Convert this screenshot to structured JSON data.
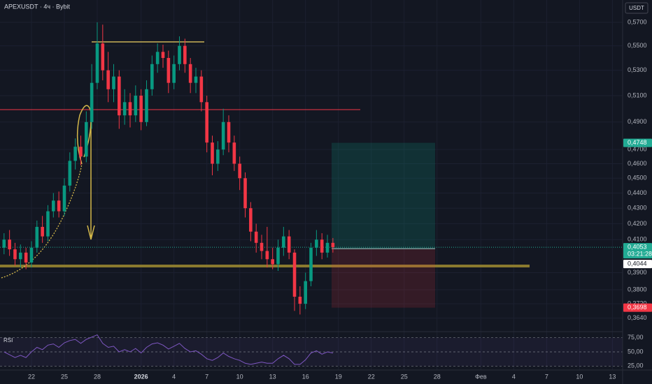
{
  "chart_data": {
    "type": "candlestick",
    "title": "APEXUSDT · 4ч · Bybit",
    "currency": "USDT",
    "log_scale": true,
    "grid": true,
    "up_color": "#089981",
    "down_color": "#f23645",
    "x": [
      19.5,
      20,
      20.5,
      21,
      21.5,
      22,
      22.5,
      23,
      23.5,
      24,
      24.5,
      25,
      25.5,
      26,
      26.5,
      27,
      27.5,
      28,
      28.5,
      29,
      29.5,
      30,
      30.5,
      31,
      31.5,
      32,
      32.5,
      33,
      33.5,
      34,
      34.5,
      35,
      35.5,
      36,
      36.5,
      37,
      37.5,
      38,
      38.5,
      39,
      39.5,
      40,
      40.5,
      41,
      41.5,
      42,
      42.5,
      43,
      43.5,
      44,
      44.5,
      45,
      45.5,
      46,
      46.5,
      47,
      47.5,
      48,
      48.5,
      49,
      49.5
    ],
    "open": [
      0.405,
      0.41,
      0.404,
      0.398,
      0.402,
      0.396,
      0.405,
      0.418,
      0.412,
      0.428,
      0.435,
      0.428,
      0.445,
      0.462,
      0.472,
      0.465,
      0.49,
      0.52,
      0.552,
      0.53,
      0.515,
      0.525,
      0.495,
      0.505,
      0.495,
      0.51,
      0.49,
      0.515,
      0.535,
      0.545,
      0.54,
      0.52,
      0.535,
      0.55,
      0.535,
      0.52,
      0.525,
      0.505,
      0.475,
      0.46,
      0.47,
      0.49,
      0.475,
      0.46,
      0.45,
      0.43,
      0.415,
      0.408,
      0.403,
      0.398,
      0.395,
      0.405,
      0.412,
      0.402,
      0.376,
      0.372,
      0.385,
      0.405,
      0.41,
      0.402,
      0.408
    ],
    "high": [
      0.414,
      0.416,
      0.408,
      0.407,
      0.405,
      0.409,
      0.422,
      0.425,
      0.432,
      0.44,
      0.441,
      0.45,
      0.468,
      0.478,
      0.48,
      0.498,
      0.535,
      0.57,
      0.568,
      0.545,
      0.535,
      0.53,
      0.515,
      0.512,
      0.518,
      0.515,
      0.522,
      0.542,
      0.552,
      0.551,
      0.546,
      0.542,
      0.558,
      0.556,
      0.54,
      0.532,
      0.53,
      0.51,
      0.48,
      0.476,
      0.5,
      0.495,
      0.48,
      0.465,
      0.454,
      0.434,
      0.42,
      0.413,
      0.418,
      0.405,
      0.41,
      0.418,
      0.416,
      0.404,
      0.382,
      0.39,
      0.408,
      0.416,
      0.414,
      0.413,
      0.411
    ],
    "low": [
      0.401,
      0.4,
      0.394,
      0.393,
      0.392,
      0.393,
      0.402,
      0.408,
      0.409,
      0.424,
      0.424,
      0.425,
      0.441,
      0.456,
      0.459,
      0.461,
      0.485,
      0.515,
      0.522,
      0.505,
      0.505,
      0.485,
      0.488,
      0.486,
      0.49,
      0.484,
      0.487,
      0.51,
      0.528,
      0.532,
      0.512,
      0.515,
      0.53,
      0.528,
      0.512,
      0.512,
      0.498,
      0.468,
      0.452,
      0.455,
      0.466,
      0.468,
      0.455,
      0.442,
      0.424,
      0.409,
      0.402,
      0.398,
      0.393,
      0.392,
      0.391,
      0.4,
      0.398,
      0.368,
      0.366,
      0.369,
      0.382,
      0.4,
      0.398,
      0.399,
      0.402
    ],
    "close": [
      0.41,
      0.404,
      0.398,
      0.402,
      0.396,
      0.405,
      0.418,
      0.412,
      0.428,
      0.435,
      0.428,
      0.445,
      0.462,
      0.472,
      0.465,
      0.49,
      0.52,
      0.552,
      0.53,
      0.515,
      0.525,
      0.495,
      0.505,
      0.495,
      0.51,
      0.49,
      0.515,
      0.535,
      0.545,
      0.54,
      0.52,
      0.535,
      0.55,
      0.535,
      0.52,
      0.525,
      0.505,
      0.475,
      0.46,
      0.47,
      0.49,
      0.475,
      0.46,
      0.45,
      0.43,
      0.415,
      0.408,
      0.403,
      0.398,
      0.395,
      0.405,
      0.412,
      0.402,
      0.376,
      0.372,
      0.385,
      0.405,
      0.41,
      0.402,
      0.408,
      0.4053
    ],
    "xlim": [
      19.13,
      75.93
    ],
    "xticks": [
      {
        "value": 22,
        "label": "22"
      },
      {
        "value": 25,
        "label": "25"
      },
      {
        "value": 28,
        "label": "28"
      },
      {
        "value": 32,
        "label": "2026"
      },
      {
        "value": 35,
        "label": "4"
      },
      {
        "value": 38,
        "label": "7"
      },
      {
        "value": 41,
        "label": "10"
      },
      {
        "value": 44,
        "label": "13"
      },
      {
        "value": 47,
        "label": "16"
      },
      {
        "value": 50,
        "label": "19"
      },
      {
        "value": 53,
        "label": "22"
      },
      {
        "value": 56,
        "label": "25"
      },
      {
        "value": 59,
        "label": "28"
      },
      {
        "value": 63,
        "label": "Фев"
      },
      {
        "value": 66,
        "label": "4"
      },
      {
        "value": 69,
        "label": "7"
      },
      {
        "value": 72,
        "label": "10"
      },
      {
        "value": 75,
        "label": "13"
      }
    ],
    "ylim": [
      0.3585,
      0.5896
    ],
    "yticks": [
      {
        "value": 0.57,
        "label": "0,5700"
      },
      {
        "value": 0.55,
        "label": "0,5500"
      },
      {
        "value": 0.53,
        "label": "0,5300"
      },
      {
        "value": 0.51,
        "label": "0,5100"
      },
      {
        "value": 0.49,
        "label": "0,4900"
      },
      {
        "value": 0.47,
        "label": "0,4700"
      },
      {
        "value": 0.46,
        "label": "0,4600"
      },
      {
        "value": 0.45,
        "label": "0,4500"
      },
      {
        "value": 0.44,
        "label": "0,4400"
      },
      {
        "value": 0.43,
        "label": "0,4300"
      },
      {
        "value": 0.42,
        "label": "0,4200"
      },
      {
        "value": 0.41,
        "label": "0,4100"
      },
      {
        "value": 0.39,
        "label": "0,3900"
      },
      {
        "value": 0.38,
        "label": "0,3800"
      },
      {
        "value": 0.372,
        "label": "0,3720"
      },
      {
        "value": 0.364,
        "label": "0,3640"
      }
    ],
    "price_labels": [
      {
        "value": 0.4748,
        "label": "0,4748",
        "color": "#22ab94"
      },
      {
        "value": 0.4053,
        "label": "0,4053",
        "color": "#22ab94",
        "countdown": "03:21:28"
      },
      {
        "value": 0.4044,
        "label": "0,4044",
        "color": "#ffffff"
      },
      {
        "value": 0.3698,
        "label": "0,3698",
        "color": "#f23645"
      }
    ],
    "indicator": {
      "label": "RSI",
      "color": "#7e57c2",
      "values": [
        50,
        45,
        40,
        44,
        40,
        50,
        58,
        54,
        62,
        64,
        58,
        66,
        70,
        72,
        65,
        72,
        76,
        80,
        65,
        58,
        60,
        50,
        54,
        50,
        56,
        48,
        58,
        64,
        66,
        62,
        55,
        60,
        65,
        56,
        50,
        52,
        46,
        38,
        35,
        40,
        48,
        42,
        38,
        35,
        30,
        28,
        30,
        32,
        30,
        30,
        38,
        44,
        38,
        28,
        28,
        36,
        48,
        52,
        46,
        50,
        48
      ],
      "ylim": [
        18,
        82
      ],
      "yticks": [
        {
          "value": 75,
          "label": "75,00"
        },
        {
          "value": 50,
          "label": "50,00"
        },
        {
          "value": 25,
          "label": "25,00"
        }
      ]
    }
  }
}
